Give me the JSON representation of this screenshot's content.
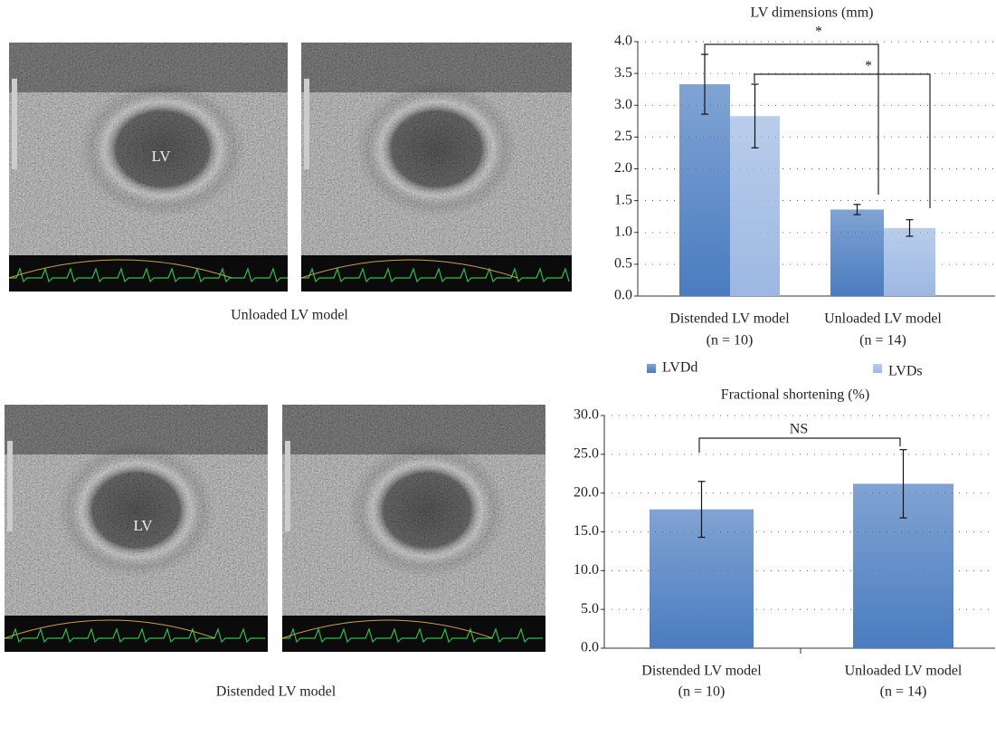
{
  "images": [
    {
      "label": "LV"
    },
    {
      "caption": "Unloaded LV model"
    },
    {
      "label": "LV"
    },
    {
      "caption": "Distended LV model"
    }
  ],
  "chart_data": [
    {
      "type": "bar",
      "title": "LV dimensions (mm)",
      "categories": [
        "Distended LV model",
        "Unloaded LV model"
      ],
      "category_notes": [
        "(n = 10)",
        "(n = 14)"
      ],
      "series": [
        {
          "name": "LVDd",
          "color": "#4a7cc0",
          "values": [
            3.33,
            1.36
          ],
          "errors": [
            0.47,
            0.08
          ]
        },
        {
          "name": "LVDs",
          "color": "#9cb8e2",
          "values": [
            2.83,
            1.07
          ],
          "errors": [
            0.5,
            0.13
          ]
        }
      ],
      "annotations": [
        "*",
        "*"
      ],
      "ylim": [
        0,
        4
      ],
      "yticks": [
        {
          "value": 0,
          "label": "0.0"
        },
        {
          "value": 0.5,
          "label": "0.5"
        },
        {
          "value": 1,
          "label": "1.0"
        },
        {
          "value": 1.5,
          "label": "1.5"
        },
        {
          "value": 2,
          "label": "2.0"
        },
        {
          "value": 2.5,
          "label": "2.5"
        },
        {
          "value": 3,
          "label": "3.0"
        },
        {
          "value": 3.5,
          "label": "3.5"
        },
        {
          "value": 4,
          "label": "4.0"
        }
      ],
      "grid": true
    },
    {
      "type": "bar",
      "title": "Fractional shortening (%)",
      "categories": [
        "Distended LV model",
        "Unloaded LV model"
      ],
      "category_notes": [
        "(n = 10)",
        "(n = 14)"
      ],
      "series": [
        {
          "color": "#4a7cc0",
          "values": [
            17.9,
            21.2
          ],
          "errors": [
            3.6,
            4.4
          ]
        }
      ],
      "annotations": [
        "NS"
      ],
      "ylim": [
        0,
        30
      ],
      "yticks": [
        {
          "value": 0,
          "label": "0.0"
        },
        {
          "value": 5,
          "label": "5.0"
        },
        {
          "value": 10,
          "label": "10.0"
        },
        {
          "value": 15,
          "label": "15.0"
        },
        {
          "value": 20,
          "label": "20.0"
        },
        {
          "value": 25,
          "label": "25.0"
        },
        {
          "value": 30,
          "label": "30.0"
        }
      ],
      "grid": true
    }
  ]
}
